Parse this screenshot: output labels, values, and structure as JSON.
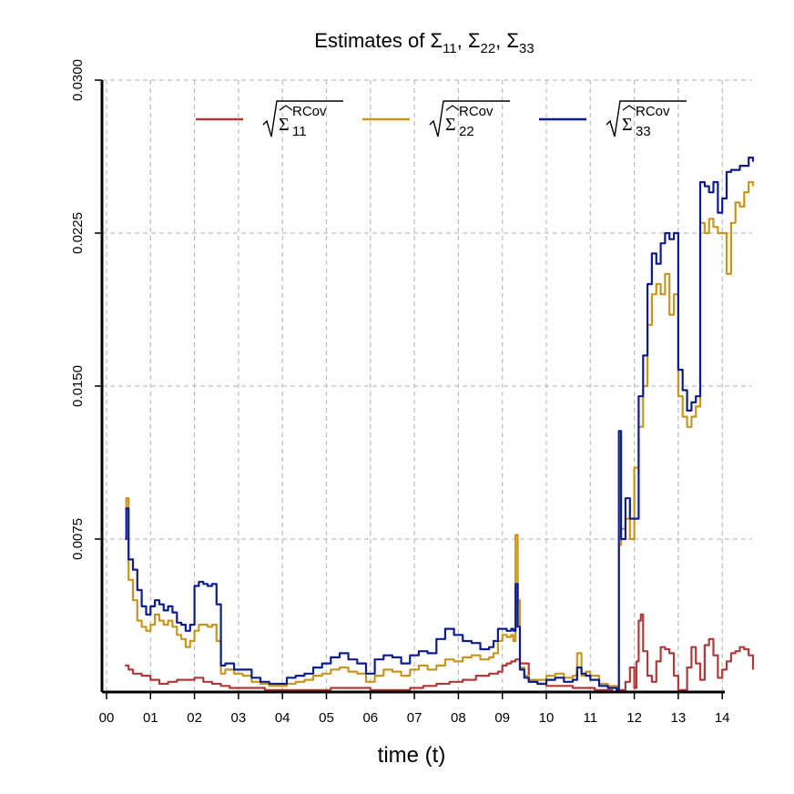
{
  "chart_data": {
    "type": "line",
    "title": "Estimates of Σ11, Σ22, Σ33",
    "title_parts": {
      "prefix": "Estimates of ",
      "symbol": "Σ",
      "subs": [
        "11",
        "22",
        "33"
      ],
      "sep": ", "
    },
    "xlabel": "time (t)",
    "ylabel": "",
    "xlim": [
      0,
      14.7
    ],
    "ylim": [
      0,
      0.03
    ],
    "xticks": [
      "00",
      "01",
      "02",
      "03",
      "04",
      "05",
      "06",
      "07",
      "08",
      "09",
      "10",
      "11",
      "12",
      "13",
      "14"
    ],
    "yticks": [
      "0.0075",
      "0.0150",
      "0.0225",
      "0.0300"
    ],
    "grid": true,
    "legend_position": "top",
    "legend_superscript": "RCov",
    "colors": {
      "s11": "#b03a3a",
      "s22": "#c8961e",
      "s33": "#0d1c8c"
    },
    "series": [
      {
        "name": "sqrt(Σ̂11 RCov)",
        "subscript": "11",
        "color": "#b03a3a",
        "x": [
          0.42,
          0.5,
          0.6,
          0.8,
          1.0,
          1.2,
          1.4,
          1.6,
          1.8,
          2.0,
          2.2,
          2.4,
          2.6,
          2.8,
          3.0,
          3.3,
          3.6,
          3.9,
          4.2,
          4.5,
          4.8,
          5.1,
          5.4,
          5.7,
          6.0,
          6.3,
          6.6,
          6.9,
          7.2,
          7.5,
          7.8,
          8.1,
          8.4,
          8.7,
          8.9,
          9.0,
          9.1,
          9.2,
          9.3,
          9.4,
          9.6,
          9.8,
          10.0,
          10.3,
          10.6,
          10.9,
          11.1,
          11.3,
          11.5,
          11.6,
          11.8,
          11.9,
          12.0,
          12.05,
          12.1,
          12.15,
          12.2,
          12.3,
          12.4,
          12.5,
          12.6,
          12.7,
          12.8,
          12.9,
          13.0,
          13.1,
          13.2,
          13.3,
          13.4,
          13.5,
          13.6,
          13.7,
          13.8,
          13.9,
          14.0,
          14.1,
          14.2,
          14.3,
          14.4,
          14.5,
          14.6,
          14.7
        ],
        "values": [
          0.0013,
          0.0011,
          0.0009,
          0.0008,
          0.0006,
          0.0004,
          0.0005,
          0.0006,
          0.0006,
          0.0007,
          0.0005,
          0.0004,
          0.0003,
          0.0002,
          0.0002,
          0.0002,
          0.0001,
          0.0001,
          0.0001,
          0.0001,
          0.0001,
          0.0002,
          0.0002,
          0.0002,
          0.0001,
          0.0001,
          0.0001,
          0.0002,
          0.0003,
          0.0004,
          0.0005,
          0.0006,
          0.0008,
          0.0009,
          0.001,
          0.0013,
          0.0014,
          0.0015,
          0.0016,
          0.0014,
          0.0005,
          0.0004,
          0.0003,
          0.0003,
          0.0002,
          0.0002,
          0.0001,
          0.0001,
          0.0,
          0.0001,
          0.0005,
          0.0012,
          0.0002,
          0.0015,
          0.0035,
          0.0038,
          0.002,
          0.0008,
          0.0005,
          0.0015,
          0.0022,
          0.0021,
          0.0019,
          0.0008,
          0.0001,
          0.0001,
          0.0012,
          0.0022,
          0.0014,
          0.0006,
          0.0023,
          0.0026,
          0.0018,
          0.0007,
          0.0011,
          0.0015,
          0.0019,
          0.002,
          0.0022,
          0.0021,
          0.0018,
          0.0011
        ]
      },
      {
        "name": "sqrt(Σ̂22 RCov)",
        "subscript": "22",
        "color": "#c8961e",
        "x": [
          0.42,
          0.45,
          0.5,
          0.6,
          0.7,
          0.8,
          0.9,
          1.0,
          1.1,
          1.2,
          1.3,
          1.4,
          1.5,
          1.6,
          1.7,
          1.8,
          1.9,
          2.0,
          2.1,
          2.2,
          2.3,
          2.4,
          2.5,
          2.6,
          2.7,
          2.9,
          3.1,
          3.3,
          3.5,
          3.7,
          3.9,
          4.1,
          4.3,
          4.5,
          4.7,
          4.9,
          5.1,
          5.3,
          5.5,
          5.7,
          5.9,
          6.1,
          6.3,
          6.5,
          6.7,
          6.9,
          7.1,
          7.3,
          7.5,
          7.7,
          7.9,
          8.1,
          8.3,
          8.5,
          8.7,
          8.8,
          8.9,
          9.0,
          9.1,
          9.2,
          9.25,
          9.3,
          9.35,
          9.4,
          9.5,
          9.6,
          9.8,
          10.0,
          10.2,
          10.4,
          10.6,
          10.7,
          10.8,
          10.9,
          11.0,
          11.2,
          11.4,
          11.6,
          11.65,
          11.7,
          11.8,
          11.9,
          12.0,
          12.1,
          12.2,
          12.3,
          12.4,
          12.5,
          12.6,
          12.7,
          12.8,
          12.9,
          13.0,
          13.1,
          13.2,
          13.3,
          13.4,
          13.5,
          13.6,
          13.7,
          13.8,
          13.9,
          14.0,
          14.1,
          14.2,
          14.3,
          14.4,
          14.5,
          14.6,
          14.7
        ],
        "values": [
          0.009,
          0.0095,
          0.0055,
          0.0045,
          0.0035,
          0.0032,
          0.003,
          0.0033,
          0.0038,
          0.0035,
          0.0033,
          0.0035,
          0.0032,
          0.0028,
          0.0026,
          0.0022,
          0.0025,
          0.003,
          0.0033,
          0.0033,
          0.0032,
          0.0033,
          0.0025,
          0.0009,
          0.0011,
          0.0009,
          0.0008,
          0.0005,
          0.0004,
          0.0003,
          0.0003,
          0.0004,
          0.0005,
          0.0006,
          0.0008,
          0.0009,
          0.0011,
          0.0012,
          0.001,
          0.0009,
          0.0005,
          0.0008,
          0.0011,
          0.001,
          0.0008,
          0.0011,
          0.0013,
          0.0011,
          0.0013,
          0.0016,
          0.0015,
          0.0017,
          0.0018,
          0.0016,
          0.0017,
          0.0019,
          0.0025,
          0.0028,
          0.0027,
          0.0028,
          0.0025,
          0.0077,
          0.0045,
          0.0012,
          0.0008,
          0.0006,
          0.0006,
          0.0008,
          0.0009,
          0.0007,
          0.0008,
          0.0019,
          0.0008,
          0.001,
          0.0008,
          0.0004,
          0.0003,
          0.0002,
          0.0072,
          0.008,
          0.0085,
          0.0075,
          0.011,
          0.013,
          0.015,
          0.018,
          0.0195,
          0.02,
          0.0195,
          0.0205,
          0.0185,
          0.0195,
          0.0145,
          0.0135,
          0.013,
          0.0135,
          0.014,
          0.023,
          0.0225,
          0.0232,
          0.0228,
          0.0225,
          0.0225,
          0.0205,
          0.023,
          0.024,
          0.0238,
          0.0245,
          0.025,
          0.0248
        ]
      },
      {
        "name": "sqrt(Σ̂33 RCov)",
        "subscript": "33",
        "color": "#0d1c8c",
        "x": [
          0.42,
          0.45,
          0.5,
          0.6,
          0.7,
          0.8,
          0.9,
          1.0,
          1.1,
          1.2,
          1.3,
          1.4,
          1.5,
          1.6,
          1.7,
          1.8,
          1.9,
          2.0,
          2.1,
          2.2,
          2.3,
          2.4,
          2.5,
          2.6,
          2.7,
          2.9,
          3.1,
          3.3,
          3.5,
          3.7,
          3.9,
          4.1,
          4.3,
          4.5,
          4.7,
          4.9,
          5.1,
          5.3,
          5.5,
          5.7,
          5.9,
          6.1,
          6.3,
          6.5,
          6.7,
          6.9,
          7.1,
          7.3,
          7.5,
          7.7,
          7.9,
          8.1,
          8.3,
          8.5,
          8.7,
          8.8,
          8.9,
          9.0,
          9.1,
          9.2,
          9.25,
          9.3,
          9.35,
          9.4,
          9.5,
          9.6,
          9.8,
          10.0,
          10.2,
          10.4,
          10.6,
          10.7,
          10.8,
          10.9,
          11.0,
          11.2,
          11.4,
          11.6,
          11.65,
          11.7,
          11.8,
          11.9,
          12.0,
          12.1,
          12.2,
          12.3,
          12.4,
          12.5,
          12.6,
          12.7,
          12.8,
          12.9,
          13.0,
          13.1,
          13.2,
          13.3,
          13.4,
          13.5,
          13.6,
          13.7,
          13.8,
          13.9,
          14.0,
          14.1,
          14.2,
          14.3,
          14.4,
          14.5,
          14.6,
          14.7
        ],
        "values": [
          0.0075,
          0.009,
          0.0065,
          0.006,
          0.005,
          0.0042,
          0.0038,
          0.0042,
          0.0045,
          0.0043,
          0.004,
          0.0042,
          0.0039,
          0.0034,
          0.0033,
          0.003,
          0.0033,
          0.0052,
          0.0054,
          0.0053,
          0.0052,
          0.0053,
          0.0043,
          0.0013,
          0.0014,
          0.0011,
          0.0011,
          0.0007,
          0.0005,
          0.0004,
          0.0004,
          0.0007,
          0.0008,
          0.0009,
          0.0012,
          0.0014,
          0.0017,
          0.0019,
          0.0016,
          0.0014,
          0.0009,
          0.0016,
          0.0018,
          0.0017,
          0.0014,
          0.0018,
          0.002,
          0.0019,
          0.0026,
          0.0031,
          0.0028,
          0.0025,
          0.0024,
          0.0021,
          0.0022,
          0.0025,
          0.0031,
          0.0031,
          0.003,
          0.0031,
          0.003,
          0.0053,
          0.0032,
          0.0011,
          0.0007,
          0.0005,
          0.0004,
          0.0006,
          0.0007,
          0.0005,
          0.0006,
          0.0012,
          0.0009,
          0.0008,
          0.0006,
          0.0003,
          0.0002,
          0.0001,
          0.0128,
          0.0075,
          0.0095,
          0.0085,
          0.0085,
          0.0145,
          0.0165,
          0.02,
          0.0215,
          0.021,
          0.022,
          0.0225,
          0.0222,
          0.0225,
          0.0158,
          0.0148,
          0.0138,
          0.0142,
          0.0145,
          0.025,
          0.0248,
          0.0245,
          0.025,
          0.0235,
          0.0242,
          0.0255,
          0.0256,
          0.0256,
          0.0258,
          0.0258,
          0.0262,
          0.026
        ]
      }
    ]
  }
}
